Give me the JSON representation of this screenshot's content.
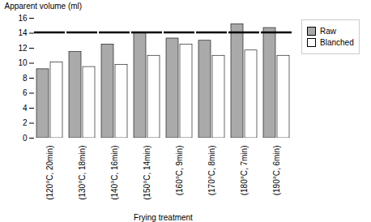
{
  "chart_data": {
    "type": "bar",
    "categories": [
      "(120°C, 20min)",
      "(130°C, 18min)",
      "(140°C, 16min)",
      "(150°C, 14min)",
      "(160°C, 9min)",
      "(170°C, 8min)",
      "(180°C, 7min)",
      "(190°C, 6min)"
    ],
    "series": [
      {
        "name": "Raw",
        "color": "#aaaaaa",
        "values": [
          9.2,
          11.5,
          12.5,
          14.0,
          13.3,
          13.0,
          15.2,
          14.7
        ]
      },
      {
        "name": "Blanched",
        "color": "#ffffff",
        "values": [
          10.1,
          9.5,
          9.8,
          11.0,
          12.5,
          11.0,
          11.7,
          11.0
        ]
      }
    ],
    "reference_line": {
      "y": 14.1,
      "color": "#000000"
    },
    "xlabel": "Frying treatment",
    "ylabel": "Apparent volume (ml)",
    "ylim": [
      0,
      16
    ],
    "yticks": [
      0,
      2,
      4,
      6,
      8,
      10,
      12,
      14,
      16
    ],
    "legend": "right",
    "grid": false
  }
}
